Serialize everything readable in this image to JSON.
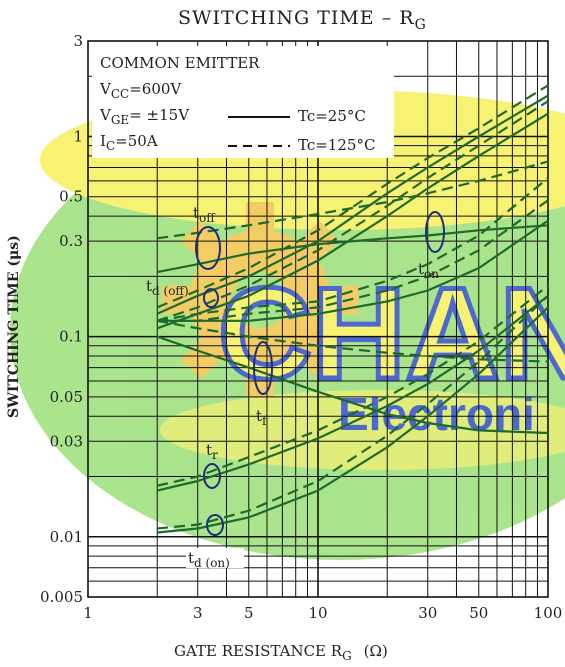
{
  "chart_data": {
    "type": "line",
    "title": "SWITCHING TIME  –  R",
    "title_sub": "G",
    "xlabel": "GATE RESISTANCE   R",
    "xlabel_sub": "G",
    "xlabel_unit": "(Ω)",
    "ylabel": "SWITCHING TIME   (μs)",
    "x_scale": "log",
    "y_scale": "log",
    "xlim": [
      1,
      100
    ],
    "ylim": [
      0.005,
      3
    ],
    "grid": true,
    "x_ticks": [
      {
        "value": 1,
        "label": "1"
      },
      {
        "value": 3,
        "label": "3"
      },
      {
        "value": 5,
        "label": "5"
      },
      {
        "value": 10,
        "label": "10"
      },
      {
        "value": 30,
        "label": "30"
      },
      {
        "value": 50,
        "label": "50"
      },
      {
        "value": 100,
        "label": "100"
      }
    ],
    "y_ticks": [
      {
        "value": 0.005,
        "label": "0.005"
      },
      {
        "value": 0.01,
        "label": "0.01"
      },
      {
        "value": 0.03,
        "label": "0.03"
      },
      {
        "value": 0.05,
        "label": "0.05"
      },
      {
        "value": 0.1,
        "label": "0.1"
      },
      {
        "value": 0.3,
        "label": "0.3"
      },
      {
        "value": 0.5,
        "label": "0.5"
      },
      {
        "value": 1,
        "label": "1"
      },
      {
        "value": 3,
        "label": "3"
      }
    ],
    "conditions": {
      "line1": "COMMON EMITTER",
      "vcc_main": "V",
      "vcc_sub": "CC",
      "vcc_val": "=600V",
      "vge_main": "V",
      "vge_sub": "GE",
      "vge_val": "= ±15V",
      "ic_main": "I",
      "ic_sub": "C",
      "ic_val": "=50A"
    },
    "legend": [
      {
        "label": "Tc=25°C",
        "dash": "solid"
      },
      {
        "label": "Tc=125°C",
        "dash": "dashed"
      }
    ],
    "curve_labels": {
      "toff": {
        "main": "t",
        "sub": "off"
      },
      "ton": {
        "main": "t",
        "sub": "on"
      },
      "tdoff": {
        "main": "t",
        "sub": "d (off)"
      },
      "tf": {
        "main": "t",
        "sub": "f"
      },
      "tr": {
        "main": "t",
        "sub": "r"
      },
      "tdon": {
        "main": "t",
        "sub": "d (on)"
      }
    },
    "x": [
      2,
      3,
      5,
      10,
      20,
      30,
      50,
      100
    ],
    "series": [
      {
        "name": "t",
        "group": "toff",
        "dash": "solid",
        "values": [
          0.21,
          0.23,
          0.26,
          0.29,
          0.31,
          0.32,
          0.34,
          0.36
        ]
      },
      {
        "name": "t",
        "group": "toff",
        "dash": "dashed",
        "values": [
          0.31,
          0.33,
          0.36,
          0.41,
          0.47,
          0.52,
          0.6,
          0.75
        ]
      },
      {
        "name": "t",
        "group": "ton",
        "dash": "solid",
        "values": [
          0.11,
          0.13,
          0.16,
          0.24,
          0.4,
          0.55,
          0.8,
          1.3
        ]
      },
      {
        "name": "t",
        "group": "ton",
        "dash": "dashed",
        "values": [
          0.12,
          0.14,
          0.18,
          0.27,
          0.45,
          0.62,
          0.9,
          1.5
        ]
      },
      {
        "name": "t",
        "group": "ton",
        "dash": "solid",
        "values": [
          0.13,
          0.16,
          0.2,
          0.3,
          0.52,
          0.7,
          1.0,
          1.6
        ]
      },
      {
        "name": "t",
        "group": "ton",
        "dash": "dashed",
        "values": [
          0.14,
          0.17,
          0.22,
          0.34,
          0.58,
          0.78,
          1.1,
          1.8
        ]
      },
      {
        "name": "t",
        "group": "tdoff",
        "dash": "solid",
        "values": [
          0.12,
          0.12,
          0.12,
          0.13,
          0.15,
          0.17,
          0.22,
          0.38
        ]
      },
      {
        "name": "t",
        "group": "tdoff",
        "dash": "dashed",
        "values": [
          0.12,
          0.12,
          0.13,
          0.14,
          0.17,
          0.2,
          0.27,
          0.48
        ]
      },
      {
        "name": "t",
        "group": "tdoff",
        "dash": "dashed",
        "values": [
          0.12,
          0.13,
          0.14,
          0.15,
          0.19,
          0.23,
          0.32,
          0.62
        ]
      },
      {
        "name": "t",
        "group": "tf",
        "dash": "solid",
        "values": [
          0.1,
          0.085,
          0.07,
          0.053,
          0.041,
          0.037,
          0.034,
          0.033
        ]
      },
      {
        "name": "t",
        "group": "tf",
        "dash": "dashed",
        "values": [
          0.12,
          0.11,
          0.1,
          0.09,
          0.083,
          0.08,
          0.077,
          0.075
        ]
      },
      {
        "name": "t",
        "group": "tr",
        "dash": "solid",
        "values": [
          0.017,
          0.019,
          0.023,
          0.031,
          0.045,
          0.058,
          0.085,
          0.16
        ]
      },
      {
        "name": "t",
        "group": "tr",
        "dash": "dashed",
        "values": [
          0.018,
          0.02,
          0.025,
          0.034,
          0.05,
          0.065,
          0.095,
          0.18
        ]
      },
      {
        "name": "t",
        "group": "tdon",
        "dash": "solid",
        "values": [
          0.0105,
          0.011,
          0.0125,
          0.017,
          0.028,
          0.04,
          0.065,
          0.14
        ]
      },
      {
        "name": "t",
        "group": "tdon",
        "dash": "dashed",
        "values": [
          0.011,
          0.0115,
          0.0135,
          0.019,
          0.032,
          0.046,
          0.075,
          0.16
        ]
      }
    ]
  },
  "watermark": {
    "big_text": "CHAN",
    "small_text": "Electroni",
    "colors": {
      "green": "#9be07a",
      "yellow": "#f6f05a",
      "blue": "#2f4fc7",
      "orange": "#e6a43a"
    }
  },
  "colors": {
    "curve": "#1f6a2a",
    "curve_blue": "#2a3f9e",
    "grid": "#111111",
    "frame": "#111111"
  }
}
